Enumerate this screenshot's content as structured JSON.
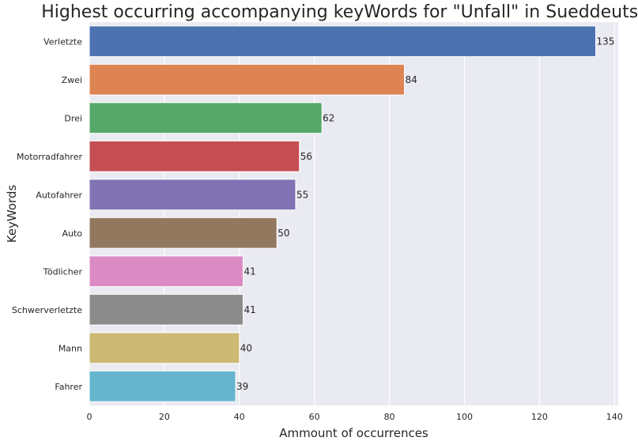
{
  "chart_data": {
    "type": "bar",
    "orientation": "horizontal",
    "title": "Highest occurring accompanying keyWords for \"Unfall\" in Sueddeutsche",
    "xlabel": "Ammount of occurrences",
    "ylabel": "KeyWords",
    "xlim": [
      0,
      141
    ],
    "xticks": [
      0,
      20,
      40,
      60,
      80,
      100,
      120,
      140
    ],
    "grid": true,
    "background": "#eaeaf2",
    "categories": [
      "Verletzte",
      "Zwei",
      "Drei",
      "Motorradfahrer",
      "Autofahrer",
      "Auto",
      "Tödlicher",
      "Schwerverletzte",
      "Mann",
      "Fahrer"
    ],
    "values": [
      135,
      84,
      62,
      56,
      55,
      50,
      41,
      41,
      40,
      39
    ],
    "colors": [
      "#4c72b0",
      "#dd8452",
      "#55a868",
      "#c44e52",
      "#8172b3",
      "#937860",
      "#da8bc3",
      "#8c8c8c",
      "#ccb974",
      "#64b5cd"
    ]
  }
}
